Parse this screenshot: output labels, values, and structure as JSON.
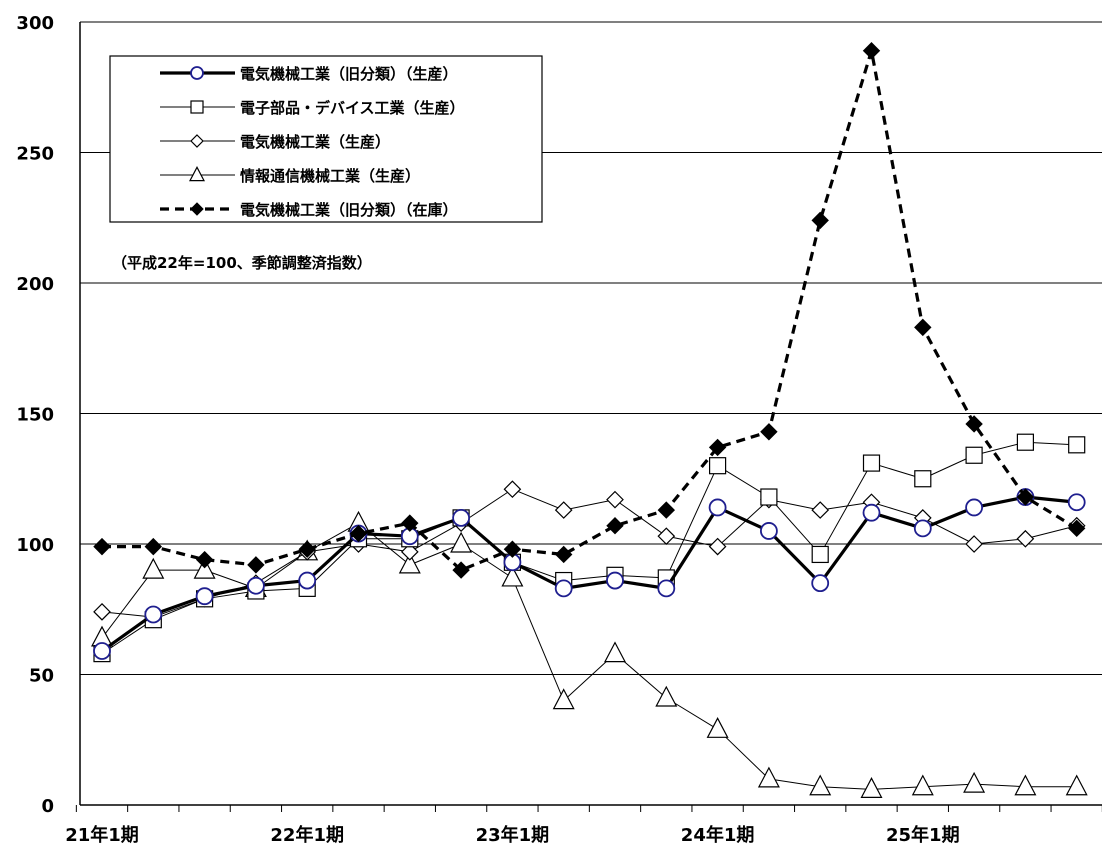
{
  "chart_data": {
    "type": "line",
    "title": "",
    "xlabel": "",
    "ylabel": "",
    "note": "（平成22年=100、季節調整済指数）",
    "ylim": [
      0,
      300
    ],
    "yticks": [
      0,
      50,
      100,
      150,
      200,
      250,
      300
    ],
    "grid": "horizontal",
    "legend_position": "top-left",
    "x_tick_labels": [
      "21年1期",
      "22年1期",
      "23年1期",
      "24年1期",
      "25年1期"
    ],
    "x": [
      "21年1期",
      "21年2期",
      "21年3期",
      "21年4期",
      "22年1期",
      "22年2期",
      "22年3期",
      "22年4期",
      "23年1期",
      "23年2期",
      "23年3期",
      "23年4期",
      "24年1期",
      "24年2期",
      "24年3期",
      "24年4期",
      "25年1期",
      "25年2期",
      "25年3期",
      "25年4期"
    ],
    "series": [
      {
        "name": "電気機械工業（旧分類）（生産）",
        "marker": "circle",
        "style": "thick-solid",
        "color": "#000000",
        "marker_color": "#1f1f8f",
        "values": [
          59,
          73,
          80,
          84,
          86,
          104,
          103,
          110,
          93,
          83,
          86,
          83,
          114,
          105,
          85,
          112,
          106,
          114,
          118,
          116
        ]
      },
      {
        "name": "電子部品・デバイス工業（生産）",
        "marker": "square",
        "style": "thin-solid",
        "color": "#000000",
        "values": [
          58,
          71,
          79,
          82,
          83,
          102,
          102,
          110,
          93,
          86,
          88,
          87,
          130,
          118,
          96,
          131,
          125,
          134,
          139,
          138
        ]
      },
      {
        "name": "電気機械工業（生産）",
        "marker": "diamond",
        "style": "thin-solid",
        "color": "#000000",
        "values": [
          74,
          72,
          79,
          85,
          97,
          100,
          97,
          108,
          121,
          113,
          117,
          103,
          99,
          117,
          113,
          116,
          110,
          100,
          102,
          107
        ]
      },
      {
        "name": "情報通信機械工業（生産）",
        "marker": "triangle",
        "style": "thin-solid",
        "color": "#000000",
        "values": [
          64,
          90,
          90,
          83,
          97,
          108,
          92,
          100,
          87,
          40,
          58,
          41,
          29,
          10,
          7,
          6,
          7,
          8,
          7,
          7
        ]
      },
      {
        "name": "電気機械工業（旧分類）（在庫）",
        "marker": "filled-diamond",
        "style": "dashed",
        "color": "#000000",
        "values": [
          99,
          99,
          94,
          92,
          98,
          104,
          108,
          90,
          98,
          96,
          107,
          113,
          137,
          143,
          224,
          289,
          183,
          146,
          118,
          106
        ]
      }
    ]
  }
}
